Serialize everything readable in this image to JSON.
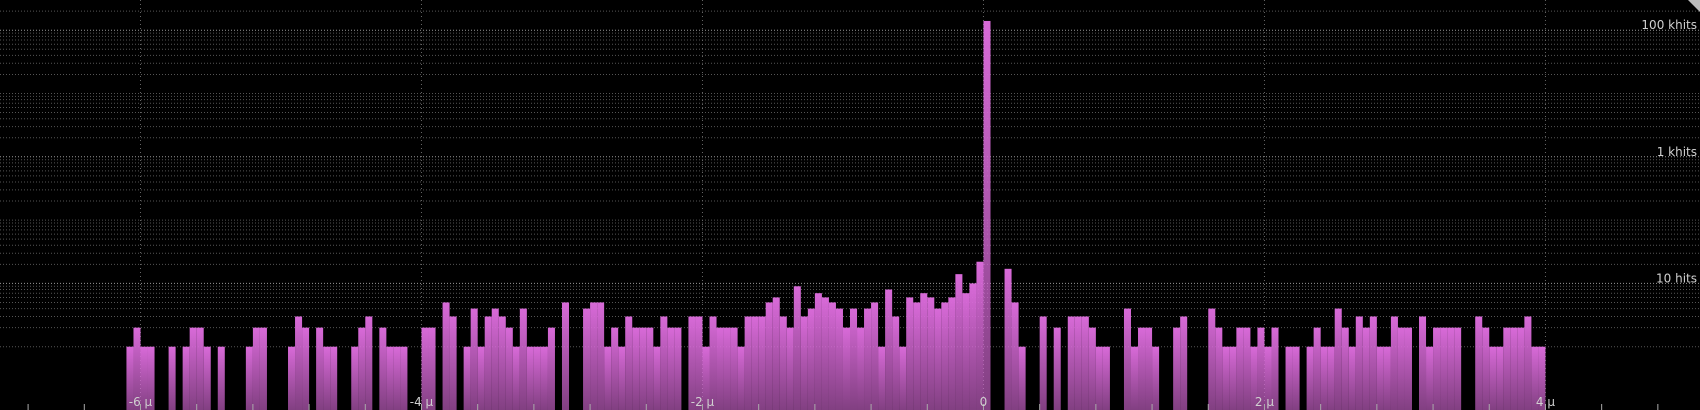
{
  "chart_data": {
    "type": "histogram",
    "color": "#d86ad8",
    "log_y": true,
    "grid": true,
    "xlim": [
      -7,
      5.1
    ],
    "ylim": [
      0.1,
      300000
    ],
    "xticks": [
      {
        "value": -6,
        "label": "-6 µ"
      },
      {
        "value": -4,
        "label": "-4 µ"
      },
      {
        "value": -2,
        "label": "-2 µ"
      },
      0,
      {
        "value": 2,
        "label": "2 µ"
      },
      {
        "value": 4,
        "label": "4 µ"
      }
    ],
    "x_minor_ticks": [
      -6.8,
      -6.4,
      -6,
      -5.6,
      -5.2,
      -4.8,
      -4.4,
      -4,
      -3.6,
      -3.2,
      -2.8,
      -2.4,
      -2,
      -1.6,
      -1.2,
      -0.8,
      -0.4,
      0,
      0.4,
      0.8,
      1.2,
      1.6,
      2,
      2.4,
      2.8,
      3.2,
      3.6,
      4,
      4.4,
      4.8
    ],
    "yticks": [
      {
        "value": 10,
        "label": "10 hits"
      },
      {
        "value": 1000,
        "label": "1 khits"
      },
      {
        "value": 100000,
        "label": "100 khits"
      }
    ],
    "y_minor_grid": [
      1,
      2,
      3,
      4,
      5,
      6,
      7,
      8,
      9,
      20,
      30,
      40,
      50,
      60,
      70,
      80,
      90,
      100,
      200,
      300,
      400,
      500,
      600,
      700,
      800,
      900,
      2000,
      3000,
      4000,
      5000,
      6000,
      7000,
      8000,
      9000,
      10000,
      20000,
      30000,
      40000,
      50000,
      60000,
      70000,
      80000,
      90000,
      200000
    ],
    "bins": [
      -6.1,
      -6.05,
      -6,
      -5.95,
      -5.9,
      -5.85,
      -5.8,
      -5.75,
      -5.7,
      -5.65,
      -5.6,
      -5.55,
      -5.5,
      -5.45,
      -5.4,
      -5.35,
      -5.3,
      -5.25,
      -5.2,
      -5.15,
      -5.1,
      -5.05,
      -5,
      -4.95,
      -4.9,
      -4.85,
      -4.8,
      -4.75,
      -4.7,
      -4.65,
      -4.6,
      -4.55,
      -4.5,
      -4.45,
      -4.4,
      -4.35,
      -4.3,
      -4.25,
      -4.2,
      -4.15,
      -4.1,
      -4.05,
      -4,
      -3.95,
      -3.9,
      -3.85,
      -3.8,
      -3.75,
      -3.7,
      -3.65,
      -3.6,
      -3.55,
      -3.5,
      -3.45,
      -3.4,
      -3.35,
      -3.3,
      -3.25,
      -3.2,
      -3.15,
      -3.1,
      -3.05,
      -3,
      -2.95,
      -2.9,
      -2.85,
      -2.8,
      -2.75,
      -2.7,
      -2.65,
      -2.6,
      -2.55,
      -2.5,
      -2.45,
      -2.4,
      -2.35,
      -2.3,
      -2.25,
      -2.2,
      -2.15,
      -2.1,
      -2.05,
      -2,
      -1.95,
      -1.9,
      -1.85,
      -1.8,
      -1.75,
      -1.7,
      -1.65,
      -1.6,
      -1.55,
      -1.5,
      -1.45,
      -1.4,
      -1.35,
      -1.3,
      -1.25,
      -1.2,
      -1.15,
      -1.1,
      -1.05,
      -1,
      -0.95,
      -0.9,
      -0.85,
      -0.8,
      -0.75,
      -0.7,
      -0.65,
      -0.6,
      -0.55,
      -0.5,
      -0.45,
      -0.4,
      -0.35,
      -0.3,
      -0.25,
      -0.2,
      -0.15,
      -0.1,
      -0.05,
      0,
      0.05,
      0.1,
      0.15,
      0.2,
      0.25,
      0.3,
      0.35,
      0.4,
      0.45,
      0.5,
      0.55,
      0.6,
      0.65,
      0.7,
      0.75,
      0.8,
      0.85,
      0.9,
      0.95,
      1,
      1.05,
      1.1,
      1.15,
      1.2,
      1.25,
      1.3,
      1.35,
      1.4,
      1.45,
      1.5,
      1.55,
      1.6,
      1.65,
      1.7,
      1.75,
      1.8,
      1.85,
      1.9,
      1.95,
      2,
      2.05,
      2.1,
      2.15,
      2.2,
      2.25,
      2.3,
      2.35,
      2.4,
      2.45,
      2.5,
      2.55,
      2.6,
      2.65,
      2.7,
      2.75,
      2.8,
      2.85,
      2.9,
      2.95,
      3,
      3.05,
      3.1,
      3.15,
      3.2,
      3.25,
      3.3,
      3.35,
      3.4,
      3.45,
      3.5,
      3.55,
      3.6,
      3.65,
      3.7,
      3.75,
      3.8,
      3.85,
      3.9,
      3.95,
      4
    ],
    "values": [
      1,
      2,
      1,
      1,
      null,
      null,
      1,
      null,
      1,
      2,
      2,
      1,
      null,
      1,
      null,
      null,
      null,
      1,
      2,
      2,
      null,
      null,
      null,
      1,
      3,
      2,
      null,
      2,
      1,
      1,
      null,
      null,
      1,
      2,
      3,
      null,
      2,
      1,
      1,
      1,
      null,
      null,
      2,
      2,
      null,
      5,
      3,
      null,
      1,
      4,
      1,
      3,
      4,
      3,
      2,
      1,
      4,
      1,
      1,
      1,
      2,
      null,
      5,
      null,
      null,
      4,
      5,
      5,
      1,
      2,
      1,
      3,
      2,
      2,
      2,
      1,
      3,
      2,
      2,
      null,
      3,
      3,
      1,
      3,
      2,
      2,
      2,
      1,
      3,
      3,
      3,
      5,
      6,
      3,
      2,
      9,
      3,
      4,
      7,
      6,
      5,
      4,
      2,
      4,
      2,
      4,
      5,
      1,
      8,
      3,
      1,
      6,
      5,
      7,
      6,
      4,
      5,
      6,
      14,
      7,
      10,
      22,
      140000,
      null,
      null,
      17,
      5,
      1,
      null,
      null,
      3,
      null,
      2,
      null,
      3,
      3,
      3,
      2,
      1,
      1,
      null,
      null,
      4,
      1,
      2,
      2,
      1,
      null,
      null,
      2,
      3,
      null,
      null,
      null,
      4,
      2,
      1,
      1,
      2,
      2,
      1,
      2,
      1,
      2,
      null,
      1,
      1,
      null,
      1,
      2,
      1,
      1,
      4,
      2,
      1,
      3,
      2,
      3,
      1,
      1,
      3,
      2,
      2,
      null,
      3,
      1,
      2,
      2,
      2,
      2,
      null,
      null,
      3,
      2,
      1,
      1,
      2,
      2,
      2,
      3,
      1,
      1
    ]
  }
}
